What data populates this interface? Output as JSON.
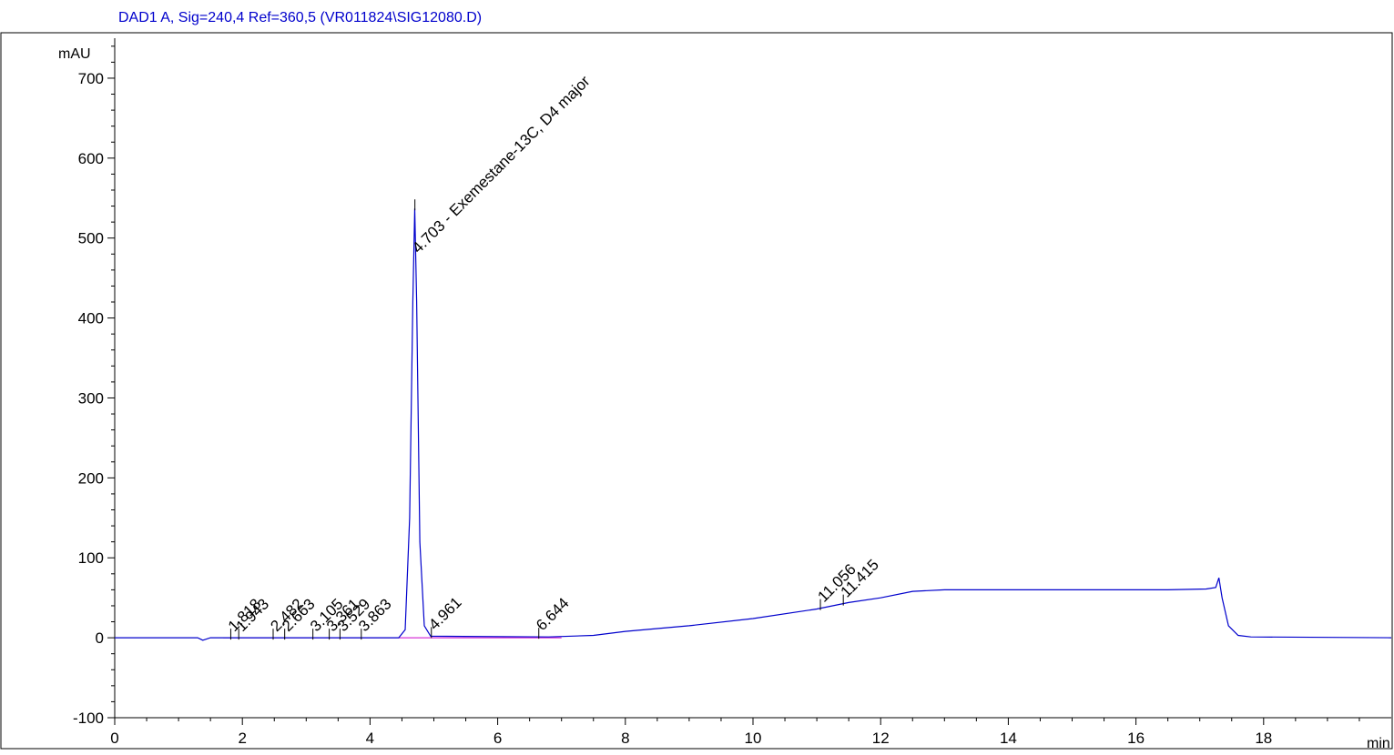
{
  "chart_data": {
    "type": "line",
    "title": "DAD1 A, Sig=240,4 Ref=360,5 (VR011824\\SIG12080.D)",
    "xlabel": "min",
    "ylabel": "mAU",
    "xlim": [
      0,
      20
    ],
    "ylim": [
      -100,
      750
    ],
    "x_ticks": [
      0,
      2,
      4,
      6,
      8,
      10,
      12,
      14,
      16,
      18
    ],
    "y_ticks": [
      -100,
      0,
      100,
      200,
      300,
      400,
      500,
      600,
      700
    ],
    "x_tick_labels": [
      "0",
      "2",
      "4",
      "6",
      "8",
      "10",
      "12",
      "14",
      "16",
      "18"
    ],
    "y_tick_labels": [
      "-100",
      "0",
      "100",
      "200",
      "300",
      "400",
      "500",
      "600",
      "700"
    ],
    "grid": false,
    "colors": {
      "trace": "#0000cc",
      "baseline": "#cc00cc",
      "title": "#0000cc",
      "axis": "#000000"
    },
    "series": [
      {
        "x": [
          0,
          1.3,
          1.38,
          1.42,
          1.5,
          2.5,
          4.45,
          4.55,
          4.62,
          4.67,
          4.7,
          4.73,
          4.78,
          4.85,
          4.95,
          6.8,
          7.5,
          8.0,
          9.0,
          10.0,
          11.0,
          11.5,
          12.0,
          12.5,
          13.0,
          16.5,
          17.1,
          17.25,
          17.3,
          17.35,
          17.45,
          17.6,
          17.8,
          20
        ],
        "y": [
          0,
          0,
          -3,
          -2,
          0,
          0,
          0,
          10,
          150,
          420,
          537,
          420,
          120,
          15,
          2,
          1,
          3,
          8,
          15,
          24,
          36,
          44,
          50,
          58,
          60,
          60,
          61,
          63,
          75,
          50,
          15,
          3,
          1,
          0
        ]
      }
    ],
    "peak_labels": [
      {
        "rt": 1.818,
        "label": "1.818"
      },
      {
        "rt": 1.943,
        "label": "1.943"
      },
      {
        "rt": 2.482,
        "label": "2.482"
      },
      {
        "rt": 2.663,
        "label": "2.663"
      },
      {
        "rt": 3.105,
        "label": "3.105"
      },
      {
        "rt": 3.361,
        "label": "3.361"
      },
      {
        "rt": 3.529,
        "label": "3.529"
      },
      {
        "rt": 3.863,
        "label": "3.863"
      },
      {
        "rt": 4.703,
        "label": "4.703 - Exemestane-13C, D4 major"
      },
      {
        "rt": 4.961,
        "label": "4.961"
      },
      {
        "rt": 6.644,
        "label": "6.644"
      },
      {
        "rt": 11.056,
        "label": "11.056"
      },
      {
        "rt": 11.415,
        "label": "11.415"
      }
    ]
  }
}
